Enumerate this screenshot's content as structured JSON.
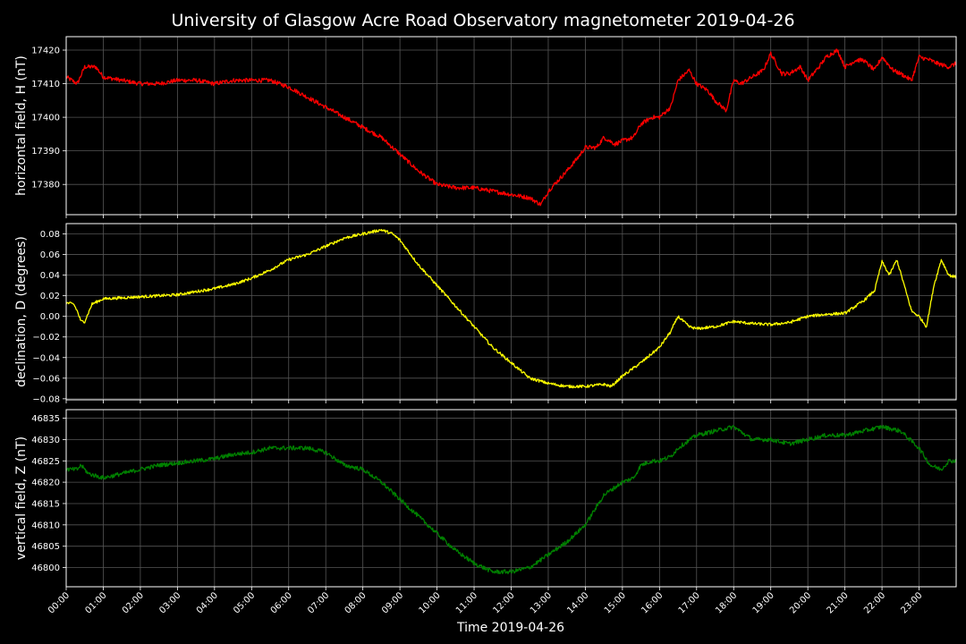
{
  "title": "University of Glasgow Acre Road Observatory magnetometer 2019-04-26",
  "xlabel": "Time 2019-04-26",
  "x_ticks": [
    "00:00",
    "01:00",
    "02:00",
    "03:00",
    "04:00",
    "05:00",
    "06:00",
    "07:00",
    "08:00",
    "09:00",
    "10:00",
    "11:00",
    "12:00",
    "13:00",
    "14:00",
    "15:00",
    "16:00",
    "17:00",
    "18:00",
    "19:00",
    "20:00",
    "21:00",
    "22:00",
    "23:00"
  ],
  "colors": {
    "background": "#000000",
    "grid": "#555555",
    "text": "#ffffff"
  },
  "chart_data": [
    {
      "type": "line",
      "ylabel": "horizontal field, H (nT)",
      "color": "#ff0000",
      "x_unit": "hour of day",
      "xlim": [
        0,
        24
      ],
      "ylim": [
        17371,
        17424
      ],
      "yticks": [
        "17380",
        "17390",
        "17400",
        "17410",
        "17420"
      ],
      "grid": true,
      "x": [
        0,
        0.3,
        0.5,
        0.8,
        1.0,
        1.5,
        2.0,
        2.5,
        3.0,
        3.5,
        4.0,
        4.5,
        5.0,
        5.5,
        6.0,
        6.5,
        7.0,
        7.5,
        8.0,
        8.5,
        9.0,
        9.5,
        10.0,
        10.5,
        11.0,
        11.5,
        12.0,
        12.5,
        12.8,
        13.0,
        13.5,
        13.8,
        14.0,
        14.3,
        14.5,
        14.8,
        15.0,
        15.3,
        15.5,
        15.8,
        16.0,
        16.3,
        16.5,
        16.8,
        17.0,
        17.3,
        17.5,
        17.8,
        18.0,
        18.2,
        18.5,
        18.8,
        19.0,
        19.3,
        19.5,
        19.8,
        20.0,
        20.3,
        20.5,
        20.8,
        21.0,
        21.3,
        21.5,
        21.8,
        22.0,
        22.3,
        22.5,
        22.8,
        23.0,
        23.3,
        23.5,
        23.8,
        24.0
      ],
      "values": [
        17412,
        17410,
        17415,
        17415,
        17412,
        17411,
        17410,
        17410,
        17411,
        17411,
        17410,
        17411,
        17411,
        17411,
        17409,
        17406,
        17403,
        17400,
        17397,
        17394,
        17389,
        17384,
        17380,
        17379,
        17379,
        17378,
        17377,
        17376,
        17374,
        17378,
        17384,
        17388,
        17391,
        17391,
        17394,
        17392,
        17393,
        17394,
        17398,
        17400,
        17400,
        17403,
        17411,
        17414,
        17410,
        17408,
        17405,
        17402,
        17411,
        17410,
        17412,
        17414,
        17419,
        17413,
        17413,
        17415,
        17411,
        17415,
        17418,
        17420,
        17415,
        17417,
        17417,
        17414,
        17418,
        17414,
        17413,
        17411,
        17418,
        17417,
        17416,
        17415,
        17416
      ]
    },
    {
      "type": "line",
      "ylabel": "declination, D (degrees)",
      "color": "#ffff00",
      "x_unit": "hour of day",
      "xlim": [
        0,
        24
      ],
      "ylim": [
        -0.081,
        0.09
      ],
      "yticks": [
        "−0.08",
        "−0.06",
        "−0.04",
        "−0.02",
        "0.00",
        "0.02",
        "0.04",
        "0.06",
        "0.08"
      ],
      "grid": true,
      "x": [
        0,
        0.2,
        0.3,
        0.4,
        0.5,
        0.7,
        1.0,
        1.5,
        2.0,
        2.5,
        3.0,
        3.5,
        4.0,
        4.5,
        5.0,
        5.5,
        6.0,
        6.5,
        7.0,
        7.5,
        8.0,
        8.5,
        8.8,
        9.0,
        9.5,
        10.0,
        10.5,
        11.0,
        11.5,
        12.0,
        12.5,
        13.0,
        13.5,
        14.0,
        14.5,
        14.7,
        15.0,
        15.5,
        16.0,
        16.3,
        16.5,
        16.8,
        17.0,
        17.5,
        18.0,
        18.5,
        19.0,
        19.5,
        20.0,
        20.5,
        21.0,
        21.5,
        21.8,
        22.0,
        22.2,
        22.4,
        22.6,
        22.8,
        23.0,
        23.2,
        23.4,
        23.6,
        23.8,
        24.0
      ],
      "values": [
        0.013,
        0.012,
        0.005,
        -0.005,
        -0.005,
        0.012,
        0.017,
        0.018,
        0.019,
        0.02,
        0.021,
        0.024,
        0.027,
        0.031,
        0.037,
        0.045,
        0.055,
        0.06,
        0.068,
        0.076,
        0.08,
        0.084,
        0.08,
        0.074,
        0.05,
        0.03,
        0.01,
        -0.01,
        -0.03,
        -0.045,
        -0.06,
        -0.065,
        -0.068,
        -0.068,
        -0.066,
        -0.068,
        -0.058,
        -0.045,
        -0.03,
        -0.015,
        0.0,
        -0.01,
        -0.012,
        -0.01,
        -0.005,
        -0.007,
        -0.008,
        -0.006,
        0.0,
        0.002,
        0.003,
        0.015,
        0.025,
        0.053,
        0.04,
        0.055,
        0.03,
        0.005,
        0.0,
        -0.01,
        0.03,
        0.055,
        0.04,
        0.038
      ]
    },
    {
      "type": "line",
      "ylabel": "vertical field, Z (nT)",
      "color": "#008000",
      "x_unit": "hour of day",
      "xlim": [
        0,
        24
      ],
      "ylim": [
        46795.5,
        46837
      ],
      "yticks": [
        "46800",
        "46805",
        "46810",
        "46815",
        "46820",
        "46825",
        "46830",
        "46835"
      ],
      "grid": true,
      "x": [
        0,
        0.3,
        0.4,
        0.6,
        1.0,
        1.5,
        2.0,
        2.5,
        3.0,
        3.5,
        4.0,
        4.5,
        5.0,
        5.5,
        6.0,
        6.5,
        7.0,
        7.5,
        8.0,
        8.5,
        9.0,
        9.5,
        10.0,
        10.5,
        11.0,
        11.5,
        12.0,
        12.5,
        13.0,
        13.5,
        14.0,
        14.5,
        15.0,
        15.3,
        15.5,
        15.8,
        16.0,
        16.3,
        16.5,
        17.0,
        17.5,
        18.0,
        18.5,
        19.0,
        19.5,
        20.0,
        20.5,
        21.0,
        21.5,
        22.0,
        22.5,
        23.0,
        23.3,
        23.6,
        23.8,
        24.0
      ],
      "values": [
        46823,
        46823,
        46824,
        46822,
        46821,
        46822,
        46823,
        46824,
        46824.5,
        46825,
        46825.5,
        46826.5,
        46827,
        46828,
        46828,
        46828,
        46827,
        46824,
        46823,
        46820,
        46816,
        46812,
        46808,
        46804,
        46801,
        46799,
        46799,
        46800,
        46803,
        46806,
        46810,
        46817,
        46820,
        46821,
        46824,
        46825,
        46825,
        46826,
        46828,
        46831,
        46832,
        46833,
        46830,
        46830,
        46829,
        46830,
        46831,
        46831,
        46832,
        46833,
        46832,
        46828,
        46824,
        46823,
        46825,
        46825
      ]
    }
  ]
}
